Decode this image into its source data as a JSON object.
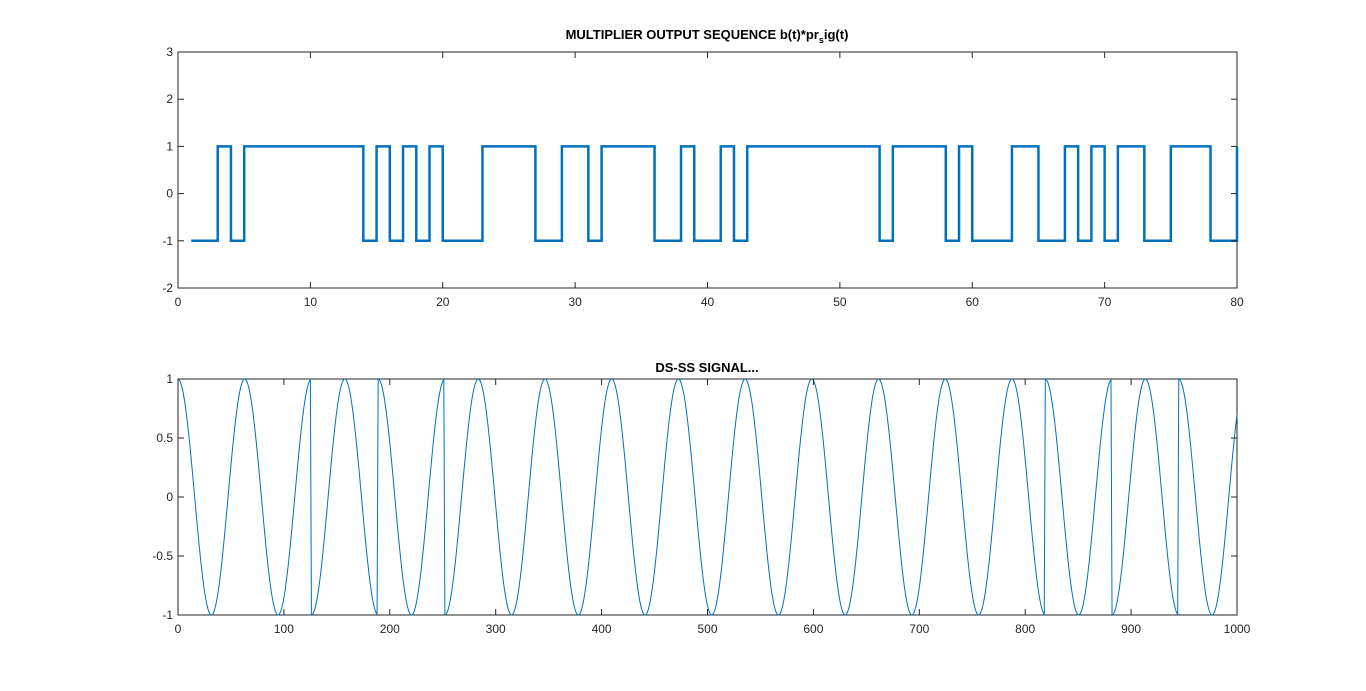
{
  "figure": {
    "background": "#ffffff"
  },
  "chart_data": [
    {
      "type": "line",
      "line_shape": "step",
      "title_main": "MULTIPLIER OUTPUT SEQUENCE b(t)*pr",
      "title_sub": "s",
      "title_tail": "ig(t)",
      "xlabel": "",
      "ylabel": "",
      "xlim": [
        0,
        80
      ],
      "ylim": [
        -2,
        3
      ],
      "xticks": [
        0,
        10,
        20,
        30,
        40,
        50,
        60,
        70,
        80
      ],
      "yticks": [
        -2,
        -1,
        0,
        1,
        2,
        3
      ],
      "grid": false,
      "color": "#0072bd",
      "series": [
        {
          "x": [
            1,
            3,
            3,
            4,
            4,
            5,
            5,
            14,
            14,
            15,
            15,
            16,
            16,
            17,
            17,
            18,
            18,
            19,
            19,
            20,
            20,
            23,
            23,
            27,
            27,
            29,
            29,
            31,
            31,
            32,
            32,
            36,
            36,
            38,
            38,
            39,
            39,
            41,
            41,
            42,
            42,
            43,
            43,
            53,
            53,
            54,
            54,
            58,
            58,
            59,
            59,
            60,
            60,
            63,
            63,
            65,
            65,
            67,
            67,
            68,
            68,
            69,
            69,
            70,
            70,
            71,
            71,
            73,
            73,
            75,
            75,
            78,
            78,
            80,
            80
          ],
          "y": [
            -1,
            -1,
            1,
            1,
            -1,
            -1,
            1,
            1,
            -1,
            -1,
            1,
            1,
            -1,
            -1,
            1,
            1,
            -1,
            -1,
            1,
            1,
            -1,
            -1,
            1,
            1,
            -1,
            -1,
            1,
            1,
            -1,
            -1,
            1,
            1,
            -1,
            -1,
            1,
            1,
            -1,
            -1,
            1,
            1,
            -1,
            -1,
            1,
            1,
            -1,
            -1,
            1,
            1,
            -1,
            -1,
            1,
            1,
            -1,
            -1,
            1,
            1,
            -1,
            -1,
            1,
            1,
            -1,
            -1,
            1,
            1,
            -1,
            -1,
            1,
            1,
            -1,
            -1,
            1,
            1,
            -1,
            -1,
            1
          ]
        }
      ]
    },
    {
      "type": "line",
      "title": "DS-SS SIGNAL...",
      "xlabel": "",
      "ylabel": "",
      "xlim": [
        0,
        1000
      ],
      "ylim": [
        -1,
        1
      ],
      "xticks": [
        0,
        100,
        200,
        300,
        400,
        500,
        600,
        700,
        800,
        900,
        1000
      ],
      "yticks": [
        -1,
        -0.5,
        0,
        0.5,
        1
      ],
      "grid": false,
      "color": "#0072bd",
      "series": [
        {
          "function": "y = s(x) * cos(2*pi*x/63)",
          "x_range": [
            0,
            1000
          ],
          "sample_step": 1,
          "phase_flips_at": [
            126,
            189,
            252,
            819,
            882,
            945
          ]
        }
      ]
    }
  ]
}
